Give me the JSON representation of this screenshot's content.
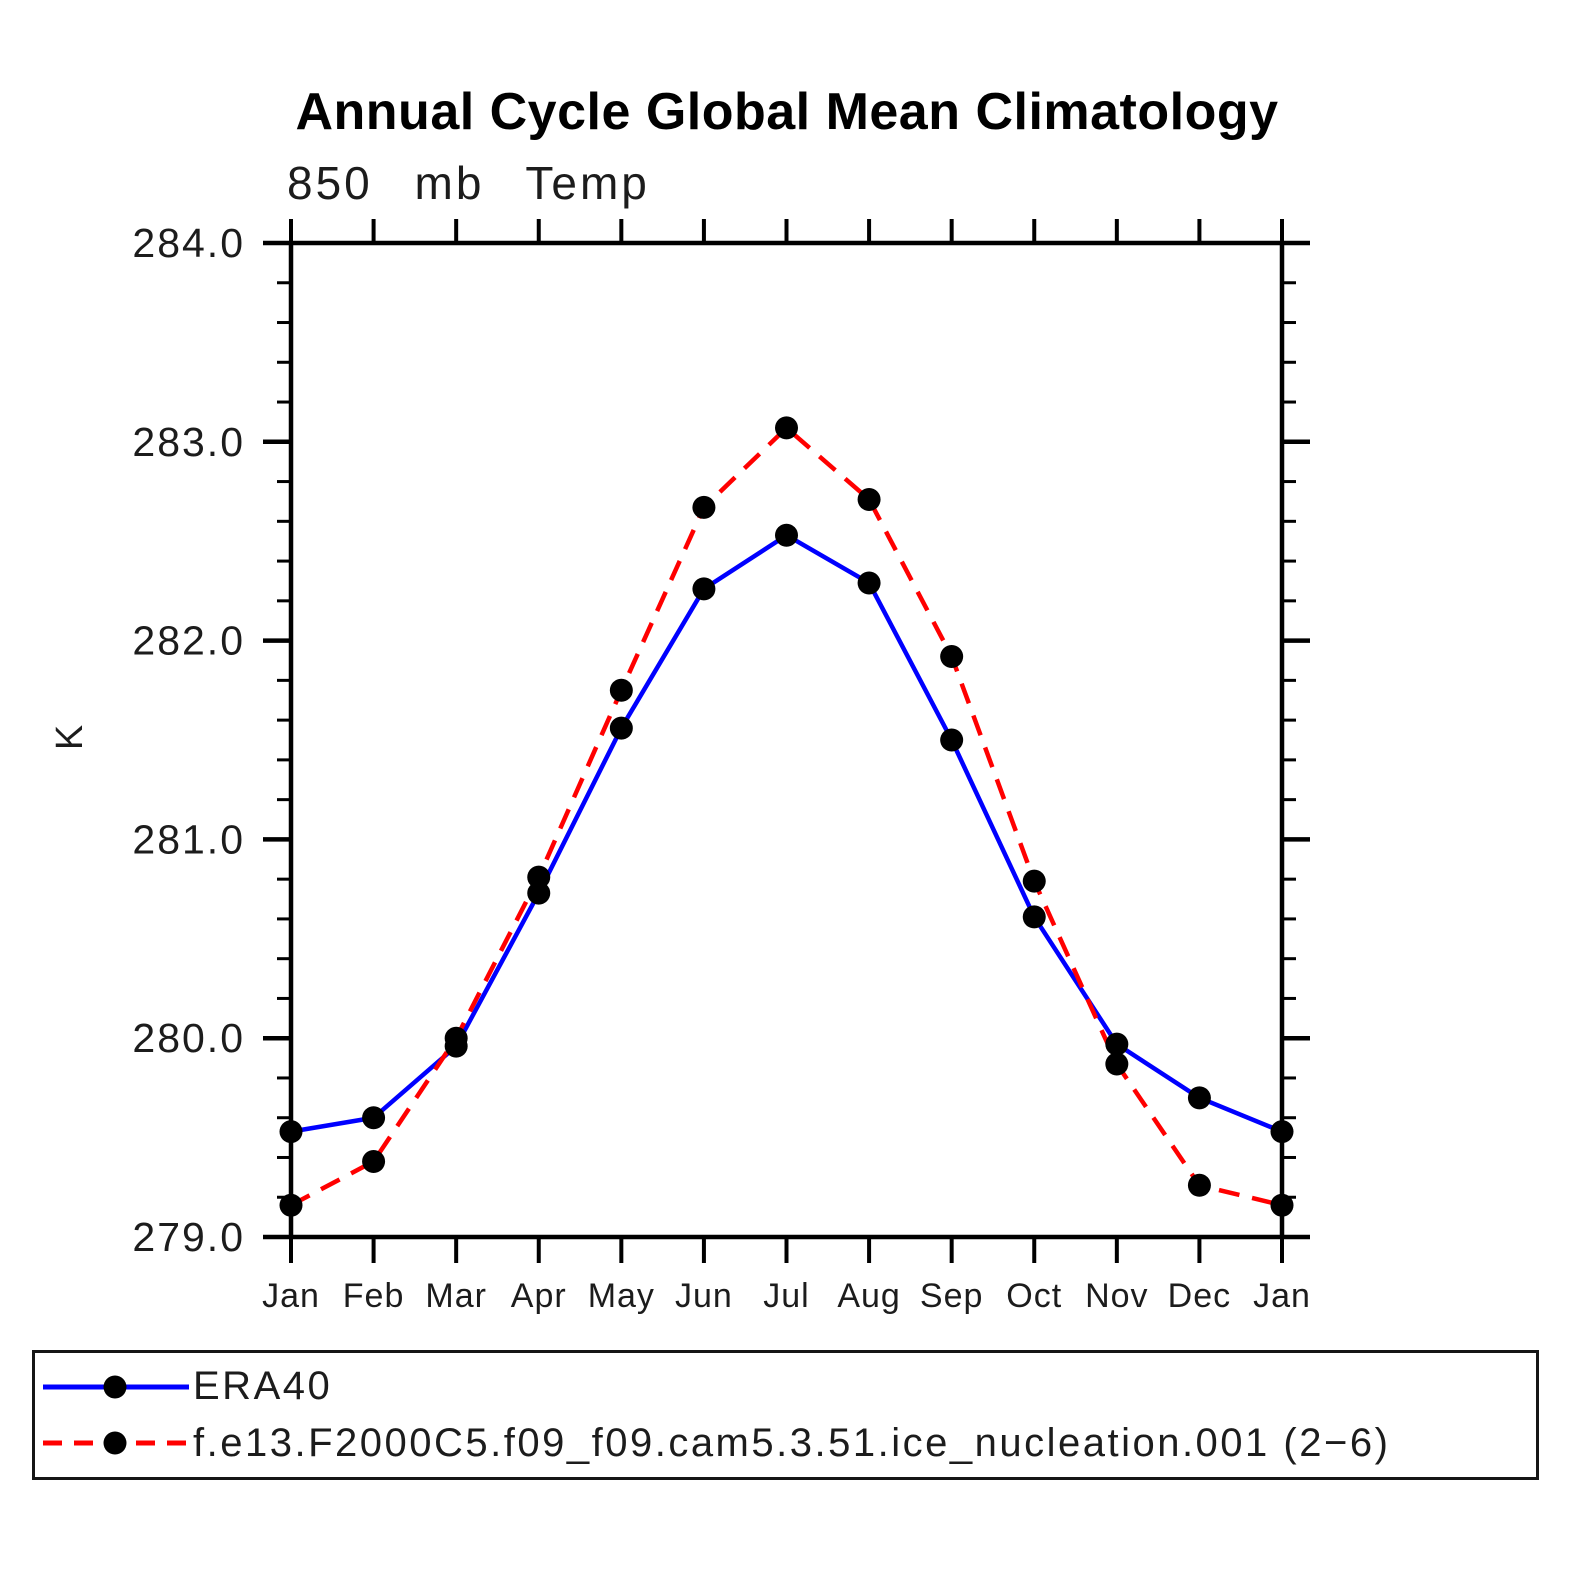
{
  "title": "Annual Cycle Global Mean Climatology",
  "subtitle": "850 mb Temp",
  "chart_data": {
    "type": "line",
    "title": "Annual Cycle Global Mean Climatology",
    "subtitle": "850 mb Temp",
    "ylabel": "K",
    "xlabel": "",
    "categories": [
      "Jan",
      "Feb",
      "Mar",
      "Apr",
      "May",
      "Jun",
      "Jul",
      "Aug",
      "Sep",
      "Oct",
      "Nov",
      "Dec",
      "Jan"
    ],
    "series": [
      {
        "name": "ERA40",
        "color": "#0000ff",
        "style": "solid",
        "marker": "black-dot",
        "values": [
          279.53,
          279.6,
          279.96,
          280.73,
          281.56,
          282.26,
          282.53,
          282.29,
          281.5,
          280.61,
          279.97,
          279.7,
          279.53
        ]
      },
      {
        "name": "f.e13.F2000C5.f09_f09.cam5.3.51.ice_nucleation.001 (2−6)",
        "color": "#ff0000",
        "style": "dashed",
        "marker": "black-dot",
        "values": [
          279.16,
          279.38,
          280.0,
          280.81,
          281.75,
          282.67,
          283.07,
          282.71,
          281.92,
          280.79,
          279.87,
          279.26,
          279.16
        ]
      }
    ],
    "ylim": [
      279.0,
      284.0
    ],
    "y_major_step": 1.0,
    "y_minor_step": 0.2,
    "y_tick_labels": [
      "279.0",
      "280.0",
      "281.0",
      "282.0",
      "283.0",
      "284.0"
    ],
    "grid": "off",
    "legend_position": "bottom",
    "axis_color": "#000000",
    "marker_color": "#000000"
  }
}
